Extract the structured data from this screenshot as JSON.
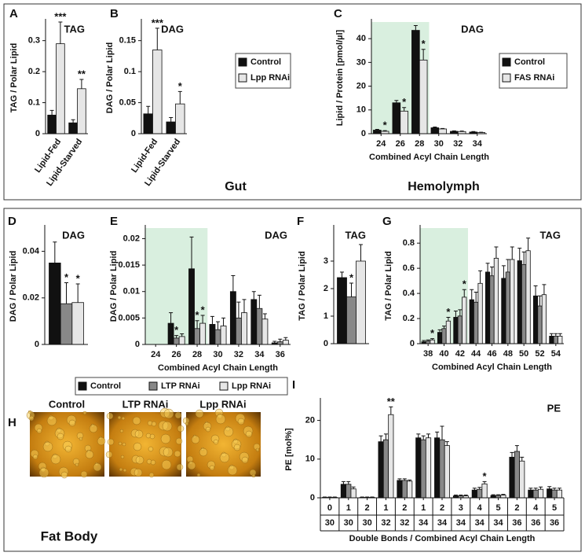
{
  "chart_data": [
    {
      "type": "bar",
      "panel": "A",
      "title": "TAG",
      "ylabel": "TAG / Polar Lipid",
      "categories": [
        "Lipid-Fed",
        "Lipid-Starved"
      ],
      "series": [
        {
          "color": "#111111",
          "values": [
            0.06,
            0.035
          ],
          "errors": [
            0.015,
            0.01
          ],
          "significance": [
            null,
            null
          ]
        },
        {
          "color": "#e6e6e6",
          "values": [
            0.29,
            0.145
          ],
          "errors": [
            0.07,
            0.03
          ],
          "significance": [
            "***",
            "**"
          ]
        }
      ],
      "ylim": [
        0,
        0.36
      ],
      "yticks": [
        0,
        0.1,
        0.2,
        0.3
      ]
    },
    {
      "type": "bar",
      "panel": "B",
      "title": "DAG",
      "ylabel": "DAG / Polar Lipid",
      "categories": [
        "Lipid-Fed",
        "Lipid-Starved"
      ],
      "series": [
        {
          "name": "Control",
          "color": "#111111",
          "values": [
            0.032,
            0.019
          ],
          "errors": [
            0.012,
            0.007
          ],
          "significance": [
            null,
            null
          ]
        },
        {
          "name": "Lpp RNAi",
          "color": "#e6e6e6",
          "values": [
            0.135,
            0.048
          ],
          "errors": [
            0.035,
            0.02
          ],
          "significance": [
            "***",
            "*"
          ]
        }
      ],
      "ylim": [
        0,
        0.18
      ],
      "yticks": [
        0,
        0.05,
        0.1,
        0.15
      ]
    },
    {
      "type": "bar",
      "panel": "C",
      "title": "DAG",
      "ylabel": "Lipid / Protein [pmol/µl]",
      "xlabel": "Combined Acyl Chain Length",
      "categories": [
        "24",
        "26",
        "28",
        "30",
        "32",
        "34"
      ],
      "highlight_categories": [
        "24",
        "26",
        "28"
      ],
      "series": [
        {
          "name": "Control",
          "color": "#111111",
          "values": [
            1.5,
            13,
            43.5,
            2.5,
            1.0,
            0.7
          ],
          "errors": [
            0.3,
            1.0,
            2,
            0.3,
            0.2,
            0.2
          ],
          "significance": [
            null,
            null,
            null,
            null,
            null,
            null
          ]
        },
        {
          "name": "FAS RNAi",
          "color": "#e6e6e6",
          "values": [
            1.0,
            9.5,
            31,
            2.0,
            0.9,
            0.5
          ],
          "errors": [
            0.3,
            1.5,
            4.5,
            0.2,
            0.2,
            0.1
          ],
          "significance": [
            "*",
            "*",
            "*",
            null,
            null,
            null
          ]
        }
      ],
      "ylim": [
        0,
        47
      ],
      "yticks": [
        0,
        10,
        20,
        30,
        40
      ]
    },
    {
      "type": "bar",
      "panel": "D",
      "title": "DAG",
      "ylabel": "DAG / Polar Lipid",
      "categories": [
        null
      ],
      "series": [
        {
          "name": "Control",
          "color": "#111111",
          "values": [
            0.035
          ],
          "errors": [
            0.009
          ],
          "significance": [
            null
          ]
        },
        {
          "name": "LTP RNAi",
          "color": "#888888",
          "values": [
            0.0175
          ],
          "errors": [
            0.009
          ],
          "significance": [
            "*"
          ]
        },
        {
          "name": "Lpp RNAi",
          "color": "#e6e6e6",
          "values": [
            0.018
          ],
          "errors": [
            0.008
          ],
          "significance": [
            "*"
          ]
        }
      ],
      "ylim": [
        0,
        0.05
      ],
      "yticks": [
        0,
        0.02,
        0.04
      ]
    },
    {
      "type": "bar",
      "panel": "E",
      "title": "DAG",
      "ylabel": "DAG / Polar Lipid",
      "xlabel": "Combined Acyl Chain Length",
      "categories": [
        "24",
        "26",
        "28",
        "30",
        "32",
        "34",
        "36"
      ],
      "highlight_categories": [
        "24",
        "26",
        "28"
      ],
      "series": [
        {
          "color": "#111111",
          "values": [
            null,
            0.004,
            0.0143,
            0.0038,
            0.01,
            0.0085,
            0.0003
          ],
          "errors": [
            null,
            0.002,
            0.006,
            0.0015,
            0.003,
            0.0015,
            0.0003
          ],
          "significance": [
            null,
            null,
            null,
            null,
            null,
            null,
            null
          ]
        },
        {
          "color": "#888888",
          "values": [
            null,
            0.0012,
            0.003,
            0.0028,
            0.005,
            0.0068,
            0.0005
          ],
          "errors": [
            null,
            0.0005,
            0.0015,
            0.0015,
            0.003,
            0.0025,
            0.0005
          ],
          "significance": [
            null,
            "*",
            "*",
            null,
            null,
            null,
            null
          ]
        },
        {
          "color": "#e6e6e6",
          "values": [
            null,
            0.0015,
            0.004,
            0.0035,
            0.006,
            0.0048,
            0.0008
          ],
          "errors": [
            null,
            0.0005,
            0.0015,
            0.0015,
            0.0025,
            0.001,
            0.0005
          ],
          "significance": [
            null,
            null,
            "*",
            null,
            null,
            null,
            null
          ]
        }
      ],
      "ylim": [
        0,
        0.022
      ],
      "yticks": [
        0,
        0.005,
        0.01,
        0.015,
        0.02
      ]
    },
    {
      "type": "bar",
      "panel": "F",
      "title": "TAG",
      "ylabel": "TAG / Polar Lipid",
      "categories": [
        null
      ],
      "series": [
        {
          "color": "#111111",
          "values": [
            2.4
          ],
          "errors": [
            0.2
          ],
          "significance": [
            null
          ]
        },
        {
          "color": "#888888",
          "values": [
            1.7
          ],
          "errors": [
            0.5
          ],
          "significance": [
            "*"
          ]
        },
        {
          "color": "#e6e6e6",
          "values": [
            3.0
          ],
          "errors": [
            0.6
          ],
          "significance": [
            null
          ]
        }
      ],
      "ylim": [
        0,
        4.2
      ],
      "yticks": [
        0,
        1,
        2,
        3
      ]
    },
    {
      "type": "bar",
      "panel": "G",
      "title": "TAG",
      "ylabel": "TAG / Polar Lipid",
      "xlabel": "Combined Acyl Chain Length",
      "categories": [
        "38",
        "40",
        "42",
        "44",
        "46",
        "48",
        "50",
        "52",
        "54"
      ],
      "highlight_categories": [
        "38",
        "40",
        "42"
      ],
      "series": [
        {
          "color": "#111111",
          "values": [
            0.015,
            0.09,
            0.21,
            0.35,
            0.57,
            0.52,
            0.66,
            0.38,
            0.06
          ],
          "errors": [
            0.01,
            0.02,
            0.05,
            0.08,
            0.07,
            0.1,
            0.1,
            0.08,
            0.02
          ],
          "significance": [
            null,
            null,
            null,
            null,
            null,
            null,
            null,
            null,
            null
          ]
        },
        {
          "color": "#888888",
          "values": [
            0.02,
            0.12,
            0.22,
            0.33,
            0.54,
            0.57,
            0.63,
            0.3,
            0.06
          ],
          "errors": [
            0.01,
            0.02,
            0.05,
            0.08,
            0.07,
            0.1,
            0.1,
            0.08,
            0.02
          ],
          "significance": [
            null,
            null,
            null,
            null,
            null,
            null,
            null,
            null,
            null
          ]
        },
        {
          "color": "#e6e6e6",
          "values": [
            0.03,
            0.18,
            0.37,
            0.48,
            0.68,
            0.67,
            0.74,
            0.39,
            0.06
          ],
          "errors": [
            0.01,
            0.03,
            0.06,
            0.1,
            0.09,
            0.1,
            0.1,
            0.08,
            0.02
          ],
          "significance": [
            "*",
            "*",
            "*",
            null,
            null,
            null,
            null,
            null,
            null
          ]
        }
      ],
      "ylim": [
        0,
        0.92
      ],
      "yticks": [
        0,
        0.2,
        0.4,
        0.6,
        0.8
      ]
    },
    {
      "type": "bar",
      "panel": "I",
      "title": "PE",
      "ylabel": "PE [mol%]",
      "xlabel": "Double Bonds / Combined Acyl Chain Length",
      "categories": [
        "0",
        "1",
        "2",
        "1",
        "2",
        "1",
        "2",
        "3",
        "4",
        "5",
        "2",
        "4",
        "5"
      ],
      "categories2": [
        "30",
        "30",
        "30",
        "32",
        "32",
        "34",
        "34",
        "34",
        "34",
        "34",
        "36",
        "36",
        "36"
      ],
      "series": [
        {
          "color": "#111111",
          "values": [
            0.1,
            3.5,
            0.1,
            14.5,
            4.5,
            15.5,
            15.5,
            0.5,
            2.0,
            0.6,
            10.5,
            2.0,
            2.3
          ],
          "errors": [
            0.1,
            0.7,
            0.1,
            1.5,
            0.4,
            1.0,
            1.5,
            0.2,
            0.5,
            0.2,
            1.2,
            0.5,
            0.6
          ],
          "significance": [
            null,
            null,
            null,
            null,
            null,
            null,
            null,
            null,
            null,
            null,
            null,
            null,
            null
          ]
        },
        {
          "color": "#888888",
          "values": [
            0.1,
            3.5,
            0.1,
            15,
            4.5,
            15,
            15,
            0.5,
            2.2,
            0.6,
            12,
            2.0,
            2.0
          ],
          "errors": [
            0.1,
            0.7,
            0.1,
            1.5,
            0.4,
            1.0,
            3.5,
            0.2,
            0.5,
            0.2,
            1.5,
            0.5,
            0.5
          ],
          "significance": [
            null,
            null,
            null,
            null,
            null,
            null,
            null,
            null,
            null,
            null,
            null,
            null,
            null
          ]
        },
        {
          "color": "#e6e6e6",
          "values": [
            0.1,
            2.3,
            0.1,
            21.5,
            4.3,
            15.5,
            13.5,
            0.5,
            3.6,
            0.7,
            9.5,
            2.2,
            2.0
          ],
          "errors": [
            0.1,
            0.5,
            0.1,
            2.0,
            0.3,
            1.0,
            1.0,
            0.2,
            0.6,
            0.2,
            1.0,
            0.6,
            0.5
          ],
          "significance": [
            null,
            null,
            null,
            "**",
            null,
            null,
            null,
            null,
            "*",
            null,
            null,
            null,
            null
          ]
        }
      ],
      "ylim": [
        0,
        25
      ],
      "yticks": [
        0,
        10,
        20
      ]
    }
  ],
  "section_labels": [
    "Gut",
    "Hemolymph",
    "Fat Body"
  ],
  "images": {
    "panel": "H",
    "labels": [
      "Control",
      "LTP RNAi",
      "Lpp RNAi"
    ]
  }
}
